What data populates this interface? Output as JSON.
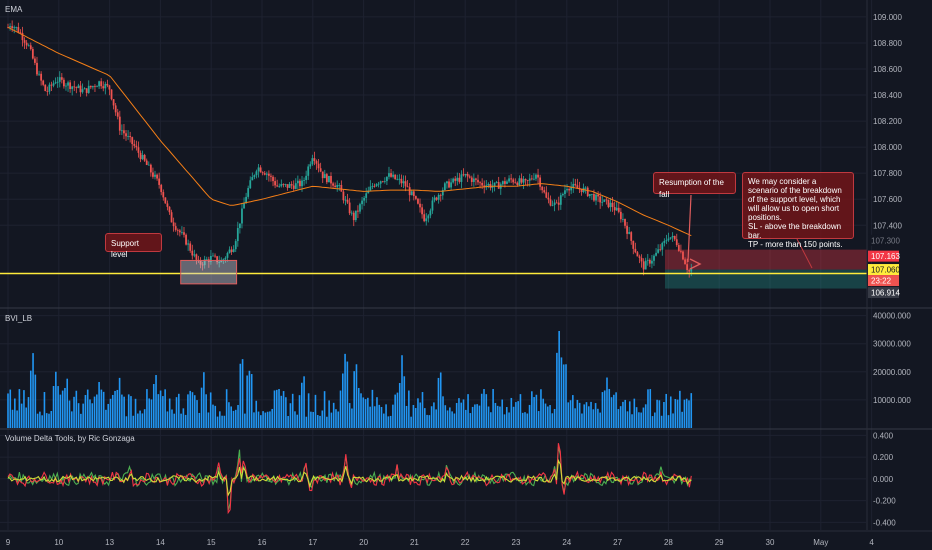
{
  "colors": {
    "background": "#131722",
    "grid": "#1e2230",
    "up": "#26a69a",
    "down": "#ef5350",
    "ema": "#f57f17",
    "support": "#ffeb3b",
    "volume": "#2196f3",
    "delta_up": "#4caf50",
    "delta_mid": "#cddc39",
    "delta_down": "#f23645"
  },
  "panes": {
    "price_title": "EMA",
    "bvi_title": "BVI_LB",
    "delta_title": "Volume Delta Tools, by Ric Gonzaga"
  },
  "price_badges": {
    "stop": "107.163",
    "current": "107.060",
    "countdown": "23:22",
    "target": "106.914",
    "top_partial": "107.300"
  },
  "annotations": {
    "support": "Support level",
    "resumption": "Resumption of the fall",
    "scenario": "We may consider a scenario of the breakdown of the support level, which will allow us to open short positions.\nSL - above the breakdown bar.\nTP - more than 150 points."
  },
  "chart_data": [
    {
      "type": "candlestick",
      "title": "EMA",
      "x_ticks": [
        "9",
        "10",
        "13",
        "14",
        "15",
        "16",
        "17",
        "20",
        "21",
        "22",
        "23",
        "24",
        "27",
        "28",
        "29",
        "30",
        "May",
        "4"
      ],
      "y_ticks": [
        109.0,
        108.8,
        108.6,
        108.4,
        108.2,
        108.0,
        107.8,
        107.6,
        107.4
      ],
      "ylim": [
        106.78,
        109.13
      ],
      "support_level": 107.03,
      "price_path": [
        [
          0,
          108.92
        ],
        [
          0.05,
          108.95
        ],
        [
          0.2,
          108.9
        ],
        [
          0.4,
          108.78
        ],
        [
          0.6,
          108.55
        ],
        [
          0.75,
          108.42
        ],
        [
          0.95,
          108.52
        ],
        [
          1.2,
          108.48
        ],
        [
          1.5,
          108.43
        ],
        [
          1.8,
          108.5
        ],
        [
          2.0,
          108.45
        ],
        [
          2.2,
          108.15
        ],
        [
          2.5,
          108.0
        ],
        [
          2.8,
          107.82
        ],
        [
          3.0,
          107.7
        ],
        [
          3.2,
          107.45
        ],
        [
          3.5,
          107.28
        ],
        [
          3.75,
          107.1
        ],
        [
          4.0,
          107.15
        ],
        [
          4.2,
          107.12
        ],
        [
          4.45,
          107.25
        ],
        [
          4.7,
          107.65
        ],
        [
          4.9,
          107.85
        ],
        [
          5.1,
          107.8
        ],
        [
          5.3,
          107.7
        ],
        [
          5.5,
          107.7
        ],
        [
          5.8,
          107.72
        ],
        [
          6.0,
          107.95
        ],
        [
          6.2,
          107.78
        ],
        [
          6.5,
          107.7
        ],
        [
          6.8,
          107.45
        ],
        [
          7.0,
          107.6
        ],
        [
          7.2,
          107.72
        ],
        [
          7.5,
          107.78
        ],
        [
          7.8,
          107.72
        ],
        [
          8.0,
          107.6
        ],
        [
          8.2,
          107.45
        ],
        [
          8.4,
          107.6
        ],
        [
          8.6,
          107.7
        ],
        [
          8.8,
          107.74
        ],
        [
          9.0,
          107.78
        ],
        [
          9.3,
          107.72
        ],
        [
          9.6,
          107.7
        ],
        [
          9.9,
          107.75
        ],
        [
          10.2,
          107.72
        ],
        [
          10.4,
          107.8
        ],
        [
          10.6,
          107.6
        ],
        [
          10.8,
          107.55
        ],
        [
          11.0,
          107.7
        ],
        [
          11.3,
          107.68
        ],
        [
          11.6,
          107.6
        ],
        [
          11.9,
          107.55
        ],
        [
          12.1,
          107.45
        ],
        [
          12.3,
          107.25
        ],
        [
          12.5,
          107.08
        ],
        [
          12.7,
          107.15
        ],
        [
          12.9,
          107.25
        ],
        [
          13.0,
          107.32
        ],
        [
          13.15,
          107.28
        ],
        [
          13.3,
          107.15
        ],
        [
          13.4,
          107.04
        ],
        [
          13.45,
          107.06
        ]
      ],
      "ema_path": [
        [
          0,
          108.92
        ],
        [
          1.0,
          108.72
        ],
        [
          2.0,
          108.55
        ],
        [
          3.0,
          108.05
        ],
        [
          3.6,
          107.78
        ],
        [
          4.0,
          107.6
        ],
        [
          4.4,
          107.55
        ],
        [
          5.0,
          107.6
        ],
        [
          5.5,
          107.65
        ],
        [
          6.0,
          107.7
        ],
        [
          6.5,
          107.68
        ],
        [
          7.0,
          107.66
        ],
        [
          7.5,
          107.67
        ],
        [
          8.0,
          107.67
        ],
        [
          8.5,
          107.66
        ],
        [
          9.0,
          107.68
        ],
        [
          9.5,
          107.7
        ],
        [
          10.0,
          107.7
        ],
        [
          10.5,
          107.72
        ],
        [
          11.0,
          107.7
        ],
        [
          11.5,
          107.66
        ],
        [
          12.0,
          107.58
        ],
        [
          12.5,
          107.48
        ],
        [
          13.0,
          107.4
        ],
        [
          13.45,
          107.32
        ]
      ],
      "stop_level": 107.163,
      "current_level": 107.06,
      "target_level": 106.914
    },
    {
      "type": "bar",
      "title": "BVI_LB",
      "y_ticks": [
        40000000,
        30000000,
        20000000,
        10000000
      ],
      "y_tick_labels": [
        "40000.000",
        "30000.000",
        "20000.000",
        "10000.000"
      ],
      "ylim": [
        0,
        42000000
      ],
      "peaks": [
        [
          0.5,
          32000000
        ],
        [
          0.95,
          24000000
        ],
        [
          1.15,
          23000000
        ],
        [
          1.8,
          20000000
        ],
        [
          2.2,
          20000000
        ],
        [
          2.9,
          21000000
        ],
        [
          3.6,
          19000000
        ],
        [
          3.85,
          21000000
        ],
        [
          4.6,
          30000000
        ],
        [
          4.75,
          27000000
        ],
        [
          5.8,
          23000000
        ],
        [
          6.65,
          35000000
        ],
        [
          6.85,
          28000000
        ],
        [
          7.75,
          27000000
        ],
        [
          8.5,
          26000000
        ],
        [
          10.85,
          41000000
        ],
        [
          10.95,
          29000000
        ],
        [
          11.8,
          22000000
        ],
        [
          12.6,
          15000000
        ],
        [
          13.4,
          11000000
        ]
      ]
    },
    {
      "type": "line",
      "title": "Volume Delta Tools, by Ric Gonzaga",
      "y_ticks": [
        0.4,
        0.2,
        0.0,
        -0.2,
        -0.4
      ],
      "y_tick_labels": [
        "0.400",
        "0.200",
        "0.000",
        "-0.200",
        "-0.400"
      ],
      "ylim": [
        -0.47,
        0.45
      ],
      "spikes": [
        [
          2.4,
          0.12
        ],
        [
          2.55,
          -0.08
        ],
        [
          4.15,
          0.12
        ],
        [
          4.35,
          -0.42
        ],
        [
          4.55,
          0.28
        ],
        [
          4.65,
          0.22
        ],
        [
          5.85,
          0.18
        ],
        [
          5.95,
          -0.12
        ],
        [
          6.65,
          0.24
        ],
        [
          6.75,
          -0.1
        ],
        [
          7.65,
          0.12
        ],
        [
          8.65,
          0.14
        ],
        [
          10.75,
          0.12
        ],
        [
          10.85,
          0.44
        ],
        [
          10.95,
          -0.1
        ],
        [
          12.85,
          0.1
        ],
        [
          13.4,
          -0.08
        ]
      ]
    }
  ]
}
